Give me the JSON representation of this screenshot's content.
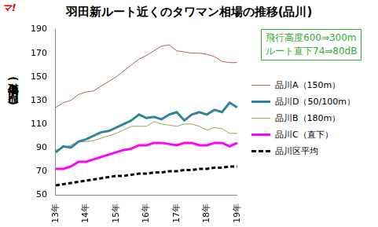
{
  "chart_data": {
    "type": "line",
    "title": "羽田新ルート近くのタワマン相場の推移(品川)",
    "logo": "マ!",
    "y_label": "単価(万円/㎡)",
    "annotations": [
      "飛行高度600⇒300m",
      "ルート直下74⇒80dB"
    ],
    "categories": [
      "13年",
      null,
      null,
      null,
      "14年",
      null,
      null,
      null,
      "15年",
      null,
      null,
      null,
      "16年",
      null,
      null,
      null,
      "17年",
      null,
      null,
      null,
      "18年",
      null,
      null,
      null,
      "19年"
    ],
    "series": [
      {
        "name": "品川A（150m）",
        "color": "#b0604f",
        "line_style": "solid",
        "values": [
          124,
          128,
          130,
          135,
          137,
          138,
          142,
          146,
          150,
          155,
          160,
          165,
          168,
          172,
          176,
          177,
          172,
          171,
          170,
          170,
          169,
          167,
          163,
          162,
          162
        ]
      },
      {
        "name": "品川D（50/100m）",
        "color": "#31849b",
        "line_style": "thick",
        "values": [
          86,
          91,
          90,
          95,
          97,
          100,
          103,
          104,
          107,
          110,
          113,
          118,
          115,
          116,
          114,
          118,
          120,
          113,
          118,
          120,
          118,
          122,
          120,
          128,
          124
        ]
      },
      {
        "name": "品川B（180m）",
        "color": "#a0a050",
        "line_style": "solid",
        "values": [
          88,
          90,
          92,
          95,
          95,
          96,
          98,
          100,
          102,
          105,
          108,
          108,
          108,
          112,
          110,
          109,
          108,
          110,
          110,
          108,
          105,
          107,
          106,
          102,
          102
        ]
      },
      {
        "name": "品川C（直下）",
        "color": "#ff00ff",
        "line_style": "thick",
        "values": [
          72,
          72,
          74,
          78,
          78,
          80,
          82,
          84,
          86,
          88,
          89,
          92,
          92,
          94,
          94,
          93,
          92,
          94,
          94,
          92,
          92,
          94,
          94,
          91,
          94
        ]
      },
      {
        "name": "品川区平均",
        "color": "#000000",
        "line_style": "dashed",
        "values": [
          58,
          59,
          60,
          61,
          62,
          63,
          64,
          65,
          66,
          66,
          67,
          68,
          68,
          69,
          69,
          70,
          70,
          71,
          71,
          72,
          72,
          73,
          73,
          74,
          74
        ]
      }
    ],
    "ylim": [
      50,
      190
    ],
    "yticks": [
      50,
      70,
      90,
      110,
      130,
      150,
      170,
      190
    ],
    "grid": false,
    "legend": "right"
  }
}
